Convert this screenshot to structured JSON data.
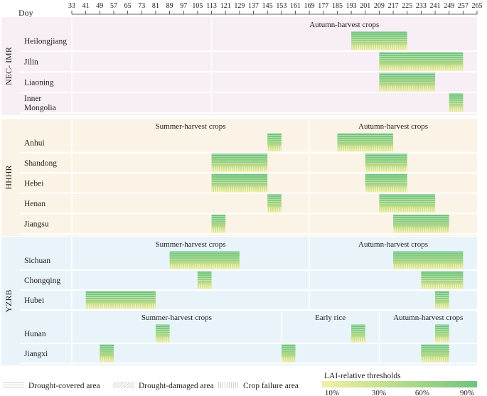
{
  "chart_data": {
    "type": "heatmap",
    "x_axis_label": "Doy",
    "x_ticks": [
      33,
      41,
      49,
      57,
      65,
      73,
      81,
      89,
      97,
      105,
      113,
      121,
      129,
      137,
      145,
      153,
      161,
      169,
      177,
      185,
      193,
      201,
      209,
      217,
      225,
      233,
      241,
      249,
      257,
      265
    ],
    "x_range": [
      33,
      265
    ],
    "regions": [
      {
        "name": "NEC- IMR",
        "bg": "#f8eef6",
        "provinces": [
          "Heilongjiang",
          "Jilin",
          "Liaoning",
          "Inner Mongolia"
        ],
        "province_lines": [
          [
            "Heilongjiang"
          ],
          [
            "Jilin"
          ],
          [
            "Liaoning"
          ],
          [
            "Inner",
            "Mongolia"
          ]
        ],
        "seasons": [
          {
            "label": "Autumn-harvest crops",
            "start": 113,
            "end": 265
          }
        ],
        "dividers": [
          113
        ],
        "bars": [
          {
            "row": 0,
            "start": 193,
            "end": 225
          },
          {
            "row": 1,
            "start": 209,
            "end": 257
          },
          {
            "row": 2,
            "start": 209,
            "end": 241
          },
          {
            "row": 3,
            "start": 249,
            "end": 257
          }
        ]
      },
      {
        "name": "HHHR",
        "bg": "#fbf4e6",
        "provinces": [
          "Anhui",
          "Shandong",
          "Hebei",
          "Henan",
          "Jiangsu"
        ],
        "province_lines": [
          [
            "Anhui"
          ],
          [
            "Shandong"
          ],
          [
            "Hebei"
          ],
          [
            "Henan"
          ],
          [
            "Jiangsu"
          ]
        ],
        "seasons": [
          {
            "label": "Summer-harvest crops",
            "start": 33,
            "end": 169
          },
          {
            "label": "Autumn-harvest crops",
            "start": 169,
            "end": 265
          }
        ],
        "dividers": [
          169
        ],
        "bars": [
          {
            "row": 0,
            "start": 145,
            "end": 153
          },
          {
            "row": 0,
            "start": 185,
            "end": 217
          },
          {
            "row": 1,
            "start": 113,
            "end": 145
          },
          {
            "row": 1,
            "start": 201,
            "end": 225
          },
          {
            "row": 2,
            "start": 113,
            "end": 145
          },
          {
            "row": 2,
            "start": 201,
            "end": 225
          },
          {
            "row": 3,
            "start": 145,
            "end": 153
          },
          {
            "row": 3,
            "start": 209,
            "end": 241
          },
          {
            "row": 4,
            "start": 113,
            "end": 121
          },
          {
            "row": 4,
            "start": 217,
            "end": 249
          }
        ]
      },
      {
        "name": "YZRB",
        "bg": "#e9f4fa",
        "provinces": [
          "Sichuan",
          "Chongqing",
          "Hubei",
          "Hunan",
          "Jiangxi"
        ],
        "province_lines": [
          [
            "Sichuan"
          ],
          [
            "Chongqing"
          ],
          [
            "Hubei"
          ],
          [
            "Hunan"
          ],
          [
            "Jiangxi"
          ]
        ],
        "seasons": [
          {
            "label": "Summer-harvest crops",
            "start": 33,
            "end": 169,
            "rows": [
              0,
              2
            ]
          },
          {
            "label": "Autumn-harvest crops",
            "start": 169,
            "end": 265,
            "rows": [
              0,
              2
            ]
          },
          {
            "label": "Summer-harvest crops",
            "start": 33,
            "end": 153,
            "rows": [
              3,
              4
            ]
          },
          {
            "label": "Early rice",
            "start": 153,
            "end": 209,
            "rows": [
              3,
              4
            ]
          },
          {
            "label": "Autumn-harvest crops",
            "start": 209,
            "end": 265,
            "rows": [
              3,
              4
            ]
          }
        ],
        "bars": [
          {
            "row": 0,
            "start": 89,
            "end": 129
          },
          {
            "row": 0,
            "start": 217,
            "end": 257
          },
          {
            "row": 1,
            "start": 105,
            "end": 113
          },
          {
            "row": 1,
            "start": 233,
            "end": 257
          },
          {
            "row": 2,
            "start": 41,
            "end": 81
          },
          {
            "row": 2,
            "start": 241,
            "end": 249
          },
          {
            "row": 3,
            "start": 81,
            "end": 89
          },
          {
            "row": 3,
            "start": 193,
            "end": 201
          },
          {
            "row": 3,
            "start": 241,
            "end": 249
          },
          {
            "row": 4,
            "start": 49,
            "end": 57
          },
          {
            "row": 4,
            "start": 153,
            "end": 161
          },
          {
            "row": 4,
            "start": 233,
            "end": 249
          }
        ]
      }
    ],
    "legend": {
      "patterns": [
        "Drought-covered area",
        "Drought-damaged area",
        "Crop failure area"
      ],
      "colorbar_title": "LAI-relative thresholds",
      "colorbar_ticks": [
        "10%",
        "30%",
        "60%",
        "90%"
      ],
      "colorbar_low": "#f2f0a4",
      "colorbar_high": "#6cc47e"
    }
  }
}
